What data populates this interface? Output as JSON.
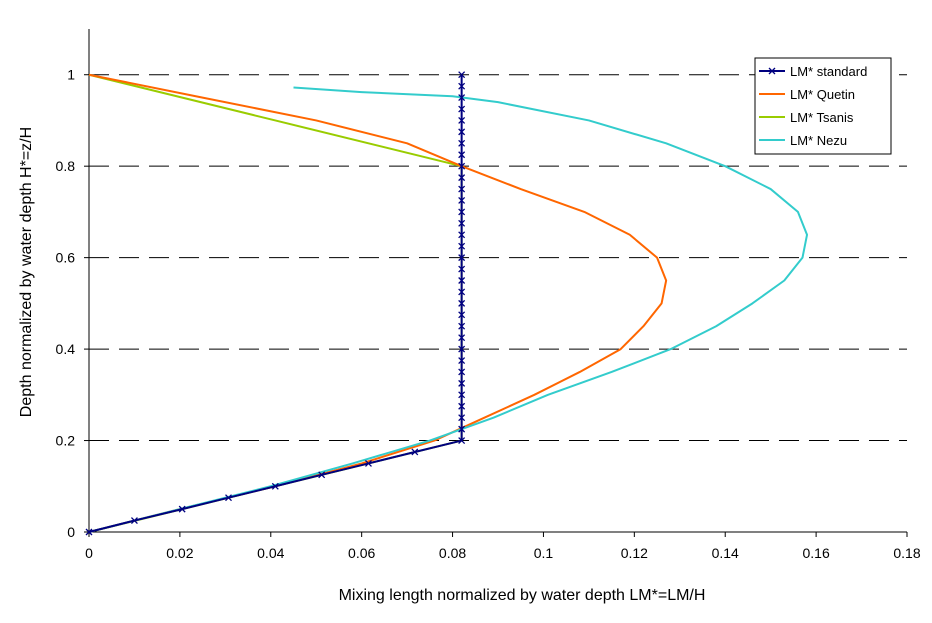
{
  "chart_data": {
    "type": "line",
    "title": "",
    "xlabel": "Mixing length normalized by water depth  LM*=LM/H",
    "ylabel": "Depth normalized by water depth  H*=z/H",
    "xlim": [
      0,
      0.18
    ],
    "ylim": [
      0,
      1.1
    ],
    "x_ticks": [
      0,
      0.02,
      0.04,
      0.06,
      0.08,
      0.1,
      0.12,
      0.14,
      0.16,
      0.18
    ],
    "x_tick_labels": [
      "0",
      "0.02",
      "0.04",
      "0.06",
      "0.08",
      "0.1",
      "0.12",
      "0.14",
      "0.16",
      "0.18"
    ],
    "y_ticks": [
      0,
      0.2,
      0.4,
      0.6,
      0.8,
      1
    ],
    "y_tick_labels": [
      "0",
      "0.2",
      "0.4",
      "0.6",
      "0.8",
      "1"
    ],
    "grid": "horizontal dashed at 0.2 intervals",
    "legend_position": "top-right",
    "series": [
      {
        "name": "LM* standard",
        "color": "#000080",
        "marker": "x",
        "points": [
          [
            0,
            0
          ],
          [
            0.01,
            0.025
          ],
          [
            0.0205,
            0.05
          ],
          [
            0.0307,
            0.075
          ],
          [
            0.041,
            0.1
          ],
          [
            0.0512,
            0.125
          ],
          [
            0.0615,
            0.15
          ],
          [
            0.0717,
            0.175
          ],
          [
            0.082,
            0.2
          ],
          [
            0.082,
            0.225
          ],
          [
            0.082,
            0.25
          ],
          [
            0.082,
            0.275
          ],
          [
            0.082,
            0.3
          ],
          [
            0.082,
            0.325
          ],
          [
            0.082,
            0.35
          ],
          [
            0.082,
            0.375
          ],
          [
            0.082,
            0.4
          ],
          [
            0.082,
            0.425
          ],
          [
            0.082,
            0.45
          ],
          [
            0.082,
            0.475
          ],
          [
            0.082,
            0.5
          ],
          [
            0.082,
            0.525
          ],
          [
            0.082,
            0.55
          ],
          [
            0.082,
            0.575
          ],
          [
            0.082,
            0.6
          ],
          [
            0.082,
            0.625
          ],
          [
            0.082,
            0.65
          ],
          [
            0.082,
            0.675
          ],
          [
            0.082,
            0.7
          ],
          [
            0.082,
            0.725
          ],
          [
            0.082,
            0.75
          ],
          [
            0.082,
            0.775
          ],
          [
            0.082,
            0.8
          ],
          [
            0.082,
            0.825
          ],
          [
            0.082,
            0.85
          ],
          [
            0.082,
            0.875
          ],
          [
            0.082,
            0.9
          ],
          [
            0.082,
            0.925
          ],
          [
            0.082,
            0.95
          ],
          [
            0.082,
            0.975
          ],
          [
            0.082,
            1.0
          ]
        ]
      },
      {
        "name": "LM* Quetin",
        "color": "#ff6600",
        "marker": "none",
        "points": [
          [
            0,
            0
          ],
          [
            0.02,
            0.05
          ],
          [
            0.041,
            0.1
          ],
          [
            0.06,
            0.15
          ],
          [
            0.076,
            0.2
          ],
          [
            0.087,
            0.25
          ],
          [
            0.098,
            0.3
          ],
          [
            0.108,
            0.35
          ],
          [
            0.117,
            0.4
          ],
          [
            0.122,
            0.45
          ],
          [
            0.126,
            0.5
          ],
          [
            0.127,
            0.55
          ],
          [
            0.125,
            0.6
          ],
          [
            0.119,
            0.65
          ],
          [
            0.109,
            0.7
          ],
          [
            0.095,
            0.75
          ],
          [
            0.082,
            0.8
          ],
          [
            0.07,
            0.85
          ],
          [
            0.05,
            0.9
          ],
          [
            0.025,
            0.95
          ],
          [
            0,
            1.0
          ]
        ]
      },
      {
        "name": "LM* Tsanis",
        "color": "#99cc00",
        "marker": "none",
        "points": [
          [
            0,
            0
          ],
          [
            0.082,
            0.2
          ],
          [
            0.082,
            0.4
          ],
          [
            0.082,
            0.6
          ],
          [
            0.082,
            0.8
          ],
          [
            0.041,
            0.9
          ],
          [
            0,
            1.0
          ]
        ]
      },
      {
        "name": "LM* Nezu",
        "color": "#33cccc",
        "marker": "none",
        "points": [
          [
            0,
            0
          ],
          [
            0.02,
            0.05
          ],
          [
            0.04,
            0.1
          ],
          [
            0.058,
            0.15
          ],
          [
            0.075,
            0.2
          ],
          [
            0.089,
            0.25
          ],
          [
            0.101,
            0.3
          ],
          [
            0.115,
            0.35
          ],
          [
            0.128,
            0.4
          ],
          [
            0.138,
            0.45
          ],
          [
            0.146,
            0.5
          ],
          [
            0.153,
            0.55
          ],
          [
            0.157,
            0.6
          ],
          [
            0.158,
            0.65
          ],
          [
            0.156,
            0.7
          ],
          [
            0.15,
            0.75
          ],
          [
            0.14,
            0.8
          ],
          [
            0.127,
            0.85
          ],
          [
            0.11,
            0.9
          ],
          [
            0.09,
            0.94
          ],
          [
            0.08,
            0.953
          ],
          [
            0.06,
            0.962
          ],
          [
            0.045,
            0.972
          ]
        ]
      }
    ]
  }
}
